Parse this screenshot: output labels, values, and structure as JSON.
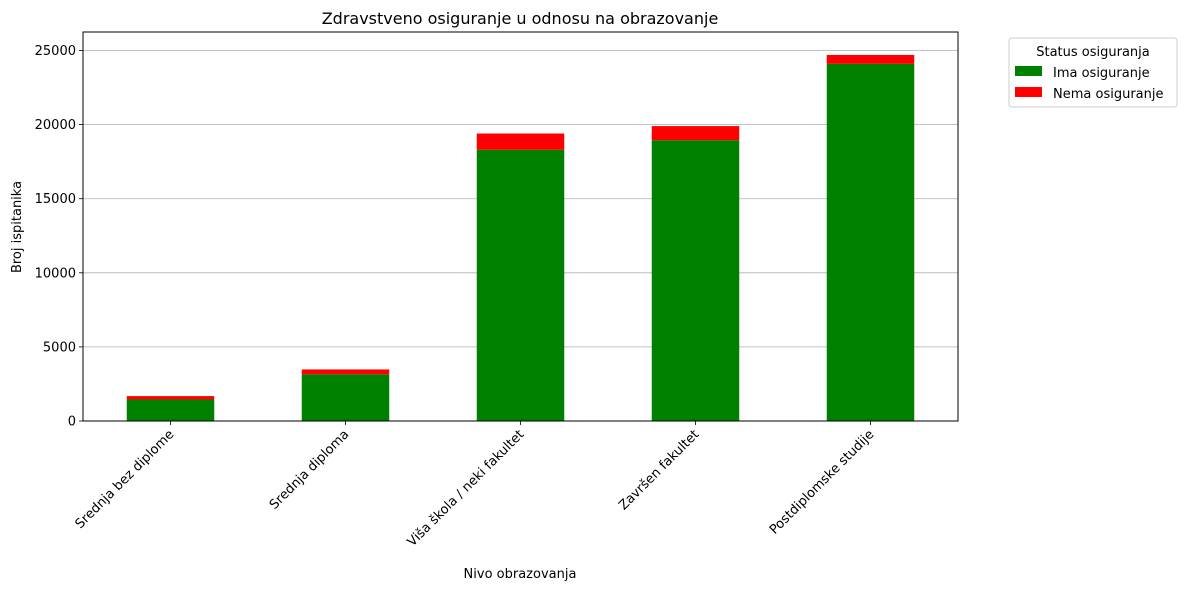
{
  "chart_data": {
    "type": "bar",
    "stacked": true,
    "title": "Zdravstveno osiguranje u odnosu na obrazovanje",
    "xlabel": "Nivo obrazovanja",
    "ylabel": "Broj ispitanika",
    "categories": [
      "Srednja bez diplome",
      "Srednja diploma",
      "Viša škola / neki fakultet",
      "Završen fakultet",
      "Postdiplomske studije"
    ],
    "series": [
      {
        "name": "Ima osiguranje",
        "color": "#008000",
        "values": [
          1450,
          3150,
          18300,
          18950,
          24100
        ]
      },
      {
        "name": "Nema osiguranje",
        "color": "#ff0000",
        "values": [
          230,
          330,
          1100,
          950,
          600
        ]
      }
    ],
    "ylim": [
      0,
      26250
    ],
    "yticks": [
      0,
      5000,
      10000,
      15000,
      20000,
      25000
    ],
    "grid": "y",
    "legend": {
      "title": "Status osiguranja",
      "placement": "outside-top-right"
    }
  }
}
